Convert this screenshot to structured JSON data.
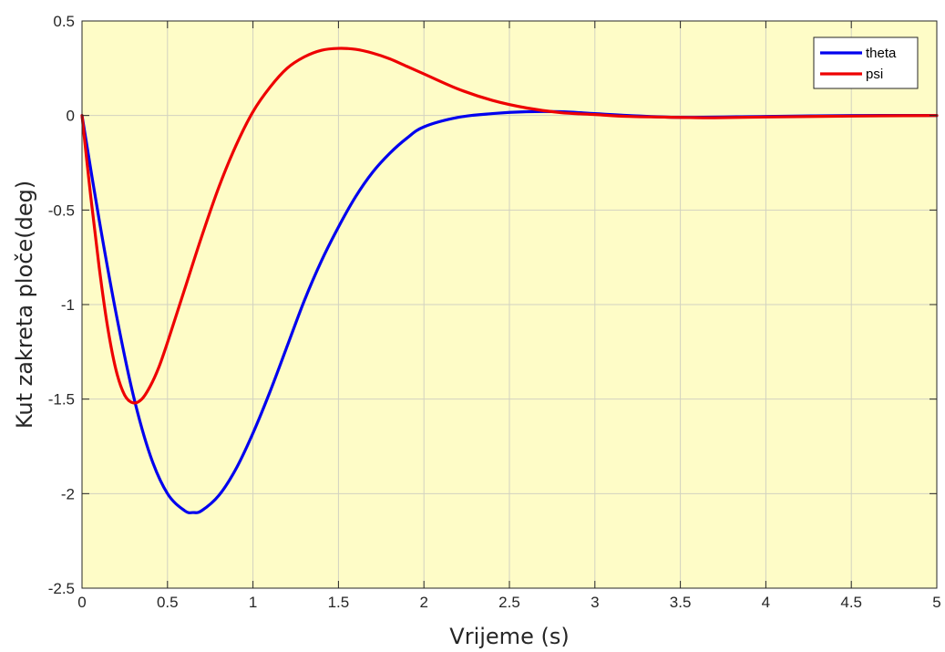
{
  "chart_data": {
    "type": "line",
    "title": "",
    "xlabel": "Vrijeme (s)",
    "ylabel": "Kut zakreta ploče(deg)",
    "xlim": [
      0,
      5
    ],
    "ylim": [
      -2.5,
      0.5
    ],
    "xticks": [
      0,
      0.5,
      1,
      1.5,
      2,
      2.5,
      3,
      3.5,
      4,
      4.5,
      5
    ],
    "xtick_labels": [
      "0",
      "0.5",
      "1",
      "1.5",
      "2",
      "2.5",
      "3",
      "3.5",
      "4",
      "4.5",
      "5"
    ],
    "yticks": [
      -2.5,
      -2,
      -1.5,
      -1,
      -0.5,
      0,
      0.5
    ],
    "ytick_labels": [
      "-2.5",
      "-2",
      "-1.5",
      "-1",
      "-0.5",
      "0",
      "0.5"
    ],
    "grid": true,
    "legend_position": "top-right",
    "plot_background": "#fefcc7",
    "series": [
      {
        "name": "theta",
        "color": "#0000ee",
        "x": [
          0,
          0.1,
          0.2,
          0.3,
          0.4,
          0.5,
          0.6,
          0.65,
          0.7,
          0.8,
          0.9,
          1.0,
          1.1,
          1.2,
          1.3,
          1.4,
          1.5,
          1.6,
          1.7,
          1.8,
          1.9,
          2.0,
          2.2,
          2.4,
          2.6,
          2.8,
          3.0,
          3.2,
          3.5,
          4.0,
          4.5,
          5.0
        ],
        "y": [
          0,
          -0.55,
          -1.05,
          -1.48,
          -1.8,
          -2.0,
          -2.09,
          -2.1,
          -2.09,
          -2.01,
          -1.87,
          -1.68,
          -1.46,
          -1.22,
          -0.98,
          -0.77,
          -0.59,
          -0.43,
          -0.3,
          -0.2,
          -0.12,
          -0.06,
          -0.01,
          0.01,
          0.02,
          0.02,
          0.01,
          0.0,
          -0.01,
          -0.005,
          0.0,
          0.0
        ]
      },
      {
        "name": "psi",
        "color": "#ee0000",
        "x": [
          0,
          0.05,
          0.1,
          0.15,
          0.2,
          0.25,
          0.3,
          0.35,
          0.4,
          0.45,
          0.5,
          0.6,
          0.7,
          0.8,
          0.9,
          1.0,
          1.1,
          1.2,
          1.3,
          1.4,
          1.5,
          1.6,
          1.7,
          1.8,
          1.9,
          2.0,
          2.2,
          2.4,
          2.6,
          2.8,
          3.0,
          3.2,
          3.5,
          3.7,
          4.0,
          4.5,
          5.0
        ],
        "y": [
          0,
          -0.42,
          -0.8,
          -1.12,
          -1.35,
          -1.48,
          -1.52,
          -1.5,
          -1.43,
          -1.33,
          -1.2,
          -0.92,
          -0.64,
          -0.38,
          -0.16,
          0.02,
          0.15,
          0.25,
          0.31,
          0.345,
          0.355,
          0.35,
          0.33,
          0.3,
          0.26,
          0.22,
          0.14,
          0.08,
          0.04,
          0.015,
          0.005,
          -0.005,
          -0.01,
          -0.012,
          -0.008,
          -0.003,
          0.0
        ]
      }
    ]
  }
}
